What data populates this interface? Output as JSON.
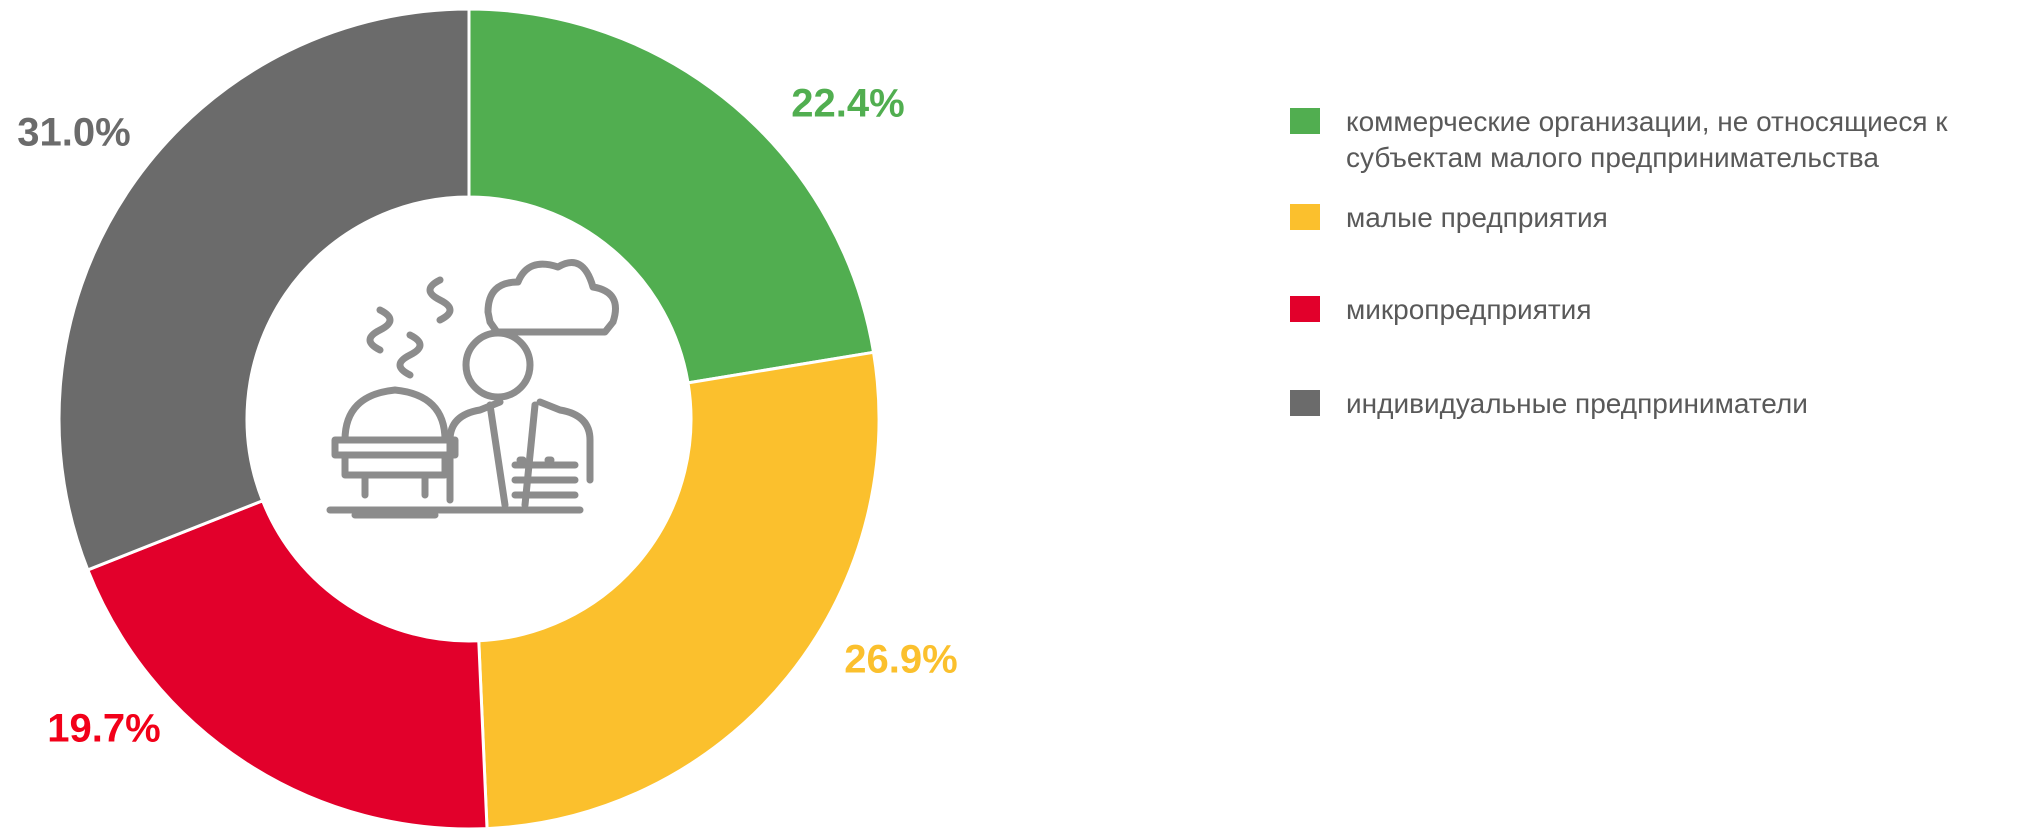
{
  "chart_data": {
    "type": "donut",
    "categories": [
      "коммерческие организации, не относящиеся к субъектам малого предпринимательства",
      "малые предприятия",
      "микропредприятия",
      "индивидуальные предприниматели"
    ],
    "values": [
      22.4,
      26.9,
      19.7,
      31.0
    ],
    "value_labels": [
      "22.4%",
      "26.9%",
      "19.7%",
      "31.0%"
    ],
    "colors": [
      "#51ae50",
      "#fbc02d",
      "#e2002b",
      "#6b6b6b"
    ],
    "label_colors": [
      "#51ae50",
      "#fbc02d",
      "#f20019",
      "#6b6b6b"
    ],
    "legend": "right"
  }
}
